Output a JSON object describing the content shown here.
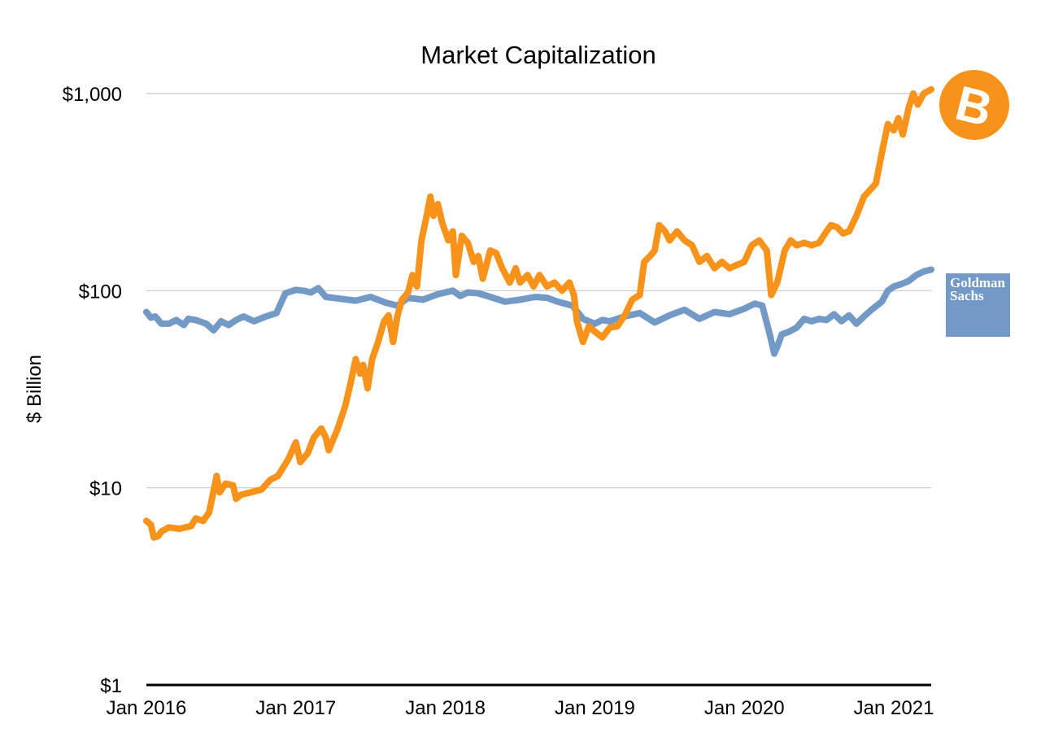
{
  "chart_data": {
    "type": "line",
    "title": "Market Capitalization",
    "xlabel": "",
    "ylabel": "$ Billion",
    "y_scale": "log",
    "ylim": [
      1,
      1000
    ],
    "y_ticks": [
      {
        "value": 1000,
        "label": "$1,000"
      },
      {
        "value": 100,
        "label": "$100"
      },
      {
        "value": 10,
        "label": "$10"
      },
      {
        "value": 1,
        "label": "$1"
      }
    ],
    "xlim": [
      2016.0,
      2021.25
    ],
    "x_ticks": [
      {
        "value": 2016,
        "label": "Jan 2016"
      },
      {
        "value": 2017,
        "label": "Jan 2017"
      },
      {
        "value": 2018,
        "label": "Jan 2018"
      },
      {
        "value": 2019,
        "label": "Jan 2019"
      },
      {
        "value": 2020,
        "label": "Jan 2020"
      },
      {
        "value": 2021,
        "label": "Jan 2021"
      }
    ],
    "grid": true,
    "series": [
      {
        "logo": "bitcoin-logo",
        "color": "#f7931a",
        "points": [
          [
            2016.0,
            6.8
          ],
          [
            2016.03,
            6.5
          ],
          [
            2016.05,
            5.6
          ],
          [
            2016.08,
            5.7
          ],
          [
            2016.1,
            6.0
          ],
          [
            2016.15,
            6.3
          ],
          [
            2016.22,
            6.2
          ],
          [
            2016.3,
            6.4
          ],
          [
            2016.33,
            7.0
          ],
          [
            2016.38,
            6.8
          ],
          [
            2016.42,
            7.5
          ],
          [
            2016.47,
            11.5
          ],
          [
            2016.49,
            9.5
          ],
          [
            2016.53,
            10.5
          ],
          [
            2016.58,
            10.3
          ],
          [
            2016.6,
            8.8
          ],
          [
            2016.63,
            9.2
          ],
          [
            2016.7,
            9.5
          ],
          [
            2016.77,
            9.8
          ],
          [
            2016.83,
            11.0
          ],
          [
            2016.88,
            11.5
          ],
          [
            2016.95,
            14.0
          ],
          [
            2017.0,
            17.0
          ],
          [
            2017.03,
            13.5
          ],
          [
            2017.08,
            15.0
          ],
          [
            2017.12,
            18.0
          ],
          [
            2017.17,
            20.0
          ],
          [
            2017.2,
            18.0
          ],
          [
            2017.22,
            15.5
          ],
          [
            2017.28,
            20.0
          ],
          [
            2017.33,
            26.0
          ],
          [
            2017.37,
            35.0
          ],
          [
            2017.4,
            45.0
          ],
          [
            2017.43,
            38.0
          ],
          [
            2017.45,
            42.0
          ],
          [
            2017.48,
            32.0
          ],
          [
            2017.51,
            45.0
          ],
          [
            2017.55,
            55.0
          ],
          [
            2017.59,
            70.0
          ],
          [
            2017.62,
            75.0
          ],
          [
            2017.65,
            55.0
          ],
          [
            2017.68,
            75.0
          ],
          [
            2017.71,
            90.0
          ],
          [
            2017.75,
            98.0
          ],
          [
            2017.78,
            120.0
          ],
          [
            2017.81,
            105.0
          ],
          [
            2017.84,
            180.0
          ],
          [
            2017.87,
            230.0
          ],
          [
            2017.9,
            300.0
          ],
          [
            2017.92,
            240.0
          ],
          [
            2017.95,
            275.0
          ],
          [
            2017.98,
            220.0
          ],
          [
            2018.02,
            180.0
          ],
          [
            2018.05,
            200.0
          ],
          [
            2018.07,
            120.0
          ],
          [
            2018.11,
            190.0
          ],
          [
            2018.15,
            175.0
          ],
          [
            2018.19,
            140.0
          ],
          [
            2018.22,
            150.0
          ],
          [
            2018.25,
            115.0
          ],
          [
            2018.3,
            160.0
          ],
          [
            2018.34,
            155.0
          ],
          [
            2018.38,
            130.0
          ],
          [
            2018.43,
            110.0
          ],
          [
            2018.47,
            130.0
          ],
          [
            2018.5,
            110.0
          ],
          [
            2018.55,
            120.0
          ],
          [
            2018.59,
            105.0
          ],
          [
            2018.63,
            120.0
          ],
          [
            2018.68,
            105.0
          ],
          [
            2018.73,
            110.0
          ],
          [
            2018.78,
            100.0
          ],
          [
            2018.83,
            110.0
          ],
          [
            2018.86,
            95.0
          ],
          [
            2018.88,
            70.0
          ],
          [
            2018.92,
            55.0
          ],
          [
            2018.96,
            66.0
          ],
          [
            2019.0,
            62.0
          ],
          [
            2019.05,
            58.0
          ],
          [
            2019.1,
            65.0
          ],
          [
            2019.15,
            66.0
          ],
          [
            2019.2,
            75.0
          ],
          [
            2019.25,
            90.0
          ],
          [
            2019.3,
            95.0
          ],
          [
            2019.33,
            140.0
          ],
          [
            2019.37,
            150.0
          ],
          [
            2019.4,
            160.0
          ],
          [
            2019.43,
            215.0
          ],
          [
            2019.47,
            200.0
          ],
          [
            2019.5,
            180.0
          ],
          [
            2019.55,
            200.0
          ],
          [
            2019.6,
            180.0
          ],
          [
            2019.65,
            170.0
          ],
          [
            2019.7,
            140.0
          ],
          [
            2019.75,
            150.0
          ],
          [
            2019.8,
            130.0
          ],
          [
            2019.85,
            140.0
          ],
          [
            2019.9,
            130.0
          ],
          [
            2019.95,
            135.0
          ],
          [
            2020.0,
            140.0
          ],
          [
            2020.05,
            170.0
          ],
          [
            2020.1,
            180.0
          ],
          [
            2020.15,
            160.0
          ],
          [
            2020.18,
            95.0
          ],
          [
            2020.22,
            110.0
          ],
          [
            2020.27,
            160.0
          ],
          [
            2020.31,
            180.0
          ],
          [
            2020.35,
            170.0
          ],
          [
            2020.4,
            175.0
          ],
          [
            2020.45,
            170.0
          ],
          [
            2020.5,
            175.0
          ],
          [
            2020.55,
            200.0
          ],
          [
            2020.58,
            215.0
          ],
          [
            2020.62,
            210.0
          ],
          [
            2020.66,
            195.0
          ],
          [
            2020.7,
            200.0
          ],
          [
            2020.75,
            240.0
          ],
          [
            2020.8,
            300.0
          ],
          [
            2020.85,
            330.0
          ],
          [
            2020.88,
            350.0
          ],
          [
            2020.92,
            500.0
          ],
          [
            2020.96,
            700.0
          ],
          [
            2021.0,
            650.0
          ],
          [
            2021.03,
            750.0
          ],
          [
            2021.06,
            620.0
          ],
          [
            2021.1,
            850.0
          ],
          [
            2021.13,
            1000.0
          ],
          [
            2021.16,
            880.0
          ],
          [
            2021.2,
            1000.0
          ],
          [
            2021.25,
            1050.0
          ]
        ]
      },
      {
        "logo": "goldman-sachs-logo",
        "color": "#7399c6",
        "points": [
          [
            2016.0,
            78.0
          ],
          [
            2016.03,
            73.0
          ],
          [
            2016.06,
            74.0
          ],
          [
            2016.1,
            68.0
          ],
          [
            2016.15,
            68.0
          ],
          [
            2016.2,
            71.0
          ],
          [
            2016.25,
            67.0
          ],
          [
            2016.28,
            72.0
          ],
          [
            2016.33,
            71.0
          ],
          [
            2016.4,
            68.0
          ],
          [
            2016.45,
            63.0
          ],
          [
            2016.5,
            70.0
          ],
          [
            2016.55,
            67.0
          ],
          [
            2016.6,
            71.0
          ],
          [
            2016.65,
            74.0
          ],
          [
            2016.72,
            70.0
          ],
          [
            2016.8,
            74.0
          ],
          [
            2016.87,
            77.0
          ],
          [
            2016.93,
            97.0
          ],
          [
            2017.0,
            101.0
          ],
          [
            2017.05,
            100.0
          ],
          [
            2017.1,
            98.0
          ],
          [
            2017.15,
            103.0
          ],
          [
            2017.2,
            93.0
          ],
          [
            2017.3,
            91.0
          ],
          [
            2017.4,
            89.0
          ],
          [
            2017.5,
            93.0
          ],
          [
            2017.6,
            87.0
          ],
          [
            2017.68,
            84.0
          ],
          [
            2017.75,
            92.0
          ],
          [
            2017.85,
            90.0
          ],
          [
            2017.95,
            96.0
          ],
          [
            2018.05,
            100.0
          ],
          [
            2018.1,
            94.0
          ],
          [
            2018.15,
            98.0
          ],
          [
            2018.22,
            97.0
          ],
          [
            2018.3,
            93.0
          ],
          [
            2018.4,
            88.0
          ],
          [
            2018.5,
            90.0
          ],
          [
            2018.6,
            93.0
          ],
          [
            2018.68,
            92.0
          ],
          [
            2018.75,
            88.0
          ],
          [
            2018.8,
            86.0
          ],
          [
            2018.85,
            84.0
          ],
          [
            2018.92,
            72.0
          ],
          [
            2019.0,
            68.0
          ],
          [
            2019.05,
            71.0
          ],
          [
            2019.1,
            70.0
          ],
          [
            2019.2,
            74.0
          ],
          [
            2019.3,
            77.0
          ],
          [
            2019.4,
            69.0
          ],
          [
            2019.5,
            75.0
          ],
          [
            2019.6,
            80.0
          ],
          [
            2019.7,
            72.0
          ],
          [
            2019.8,
            78.0
          ],
          [
            2019.9,
            76.0
          ],
          [
            2020.0,
            81.0
          ],
          [
            2020.07,
            86.0
          ],
          [
            2020.12,
            84.0
          ],
          [
            2020.17,
            60.0
          ],
          [
            2020.2,
            48.0
          ],
          [
            2020.22,
            52.0
          ],
          [
            2020.25,
            60.0
          ],
          [
            2020.3,
            62.0
          ],
          [
            2020.35,
            65.0
          ],
          [
            2020.4,
            72.0
          ],
          [
            2020.45,
            70.0
          ],
          [
            2020.5,
            72.0
          ],
          [
            2020.55,
            71.0
          ],
          [
            2020.6,
            76.0
          ],
          [
            2020.65,
            70.0
          ],
          [
            2020.7,
            75.0
          ],
          [
            2020.75,
            68.0
          ],
          [
            2020.8,
            74.0
          ],
          [
            2020.85,
            80.0
          ],
          [
            2020.92,
            88.0
          ],
          [
            2020.96,
            100.0
          ],
          [
            2021.0,
            105.0
          ],
          [
            2021.05,
            108.0
          ],
          [
            2021.1,
            112.0
          ],
          [
            2021.15,
            120.0
          ],
          [
            2021.2,
            125.0
          ],
          [
            2021.25,
            128.0
          ]
        ]
      }
    ],
    "logos": [
      {
        "name": "bitcoin-logo",
        "text": "B",
        "color": "#f7931a"
      },
      {
        "name": "goldman-sachs-logo",
        "lines": [
          "Goldman",
          "Sachs"
        ],
        "color": "#7399c6"
      }
    ]
  }
}
